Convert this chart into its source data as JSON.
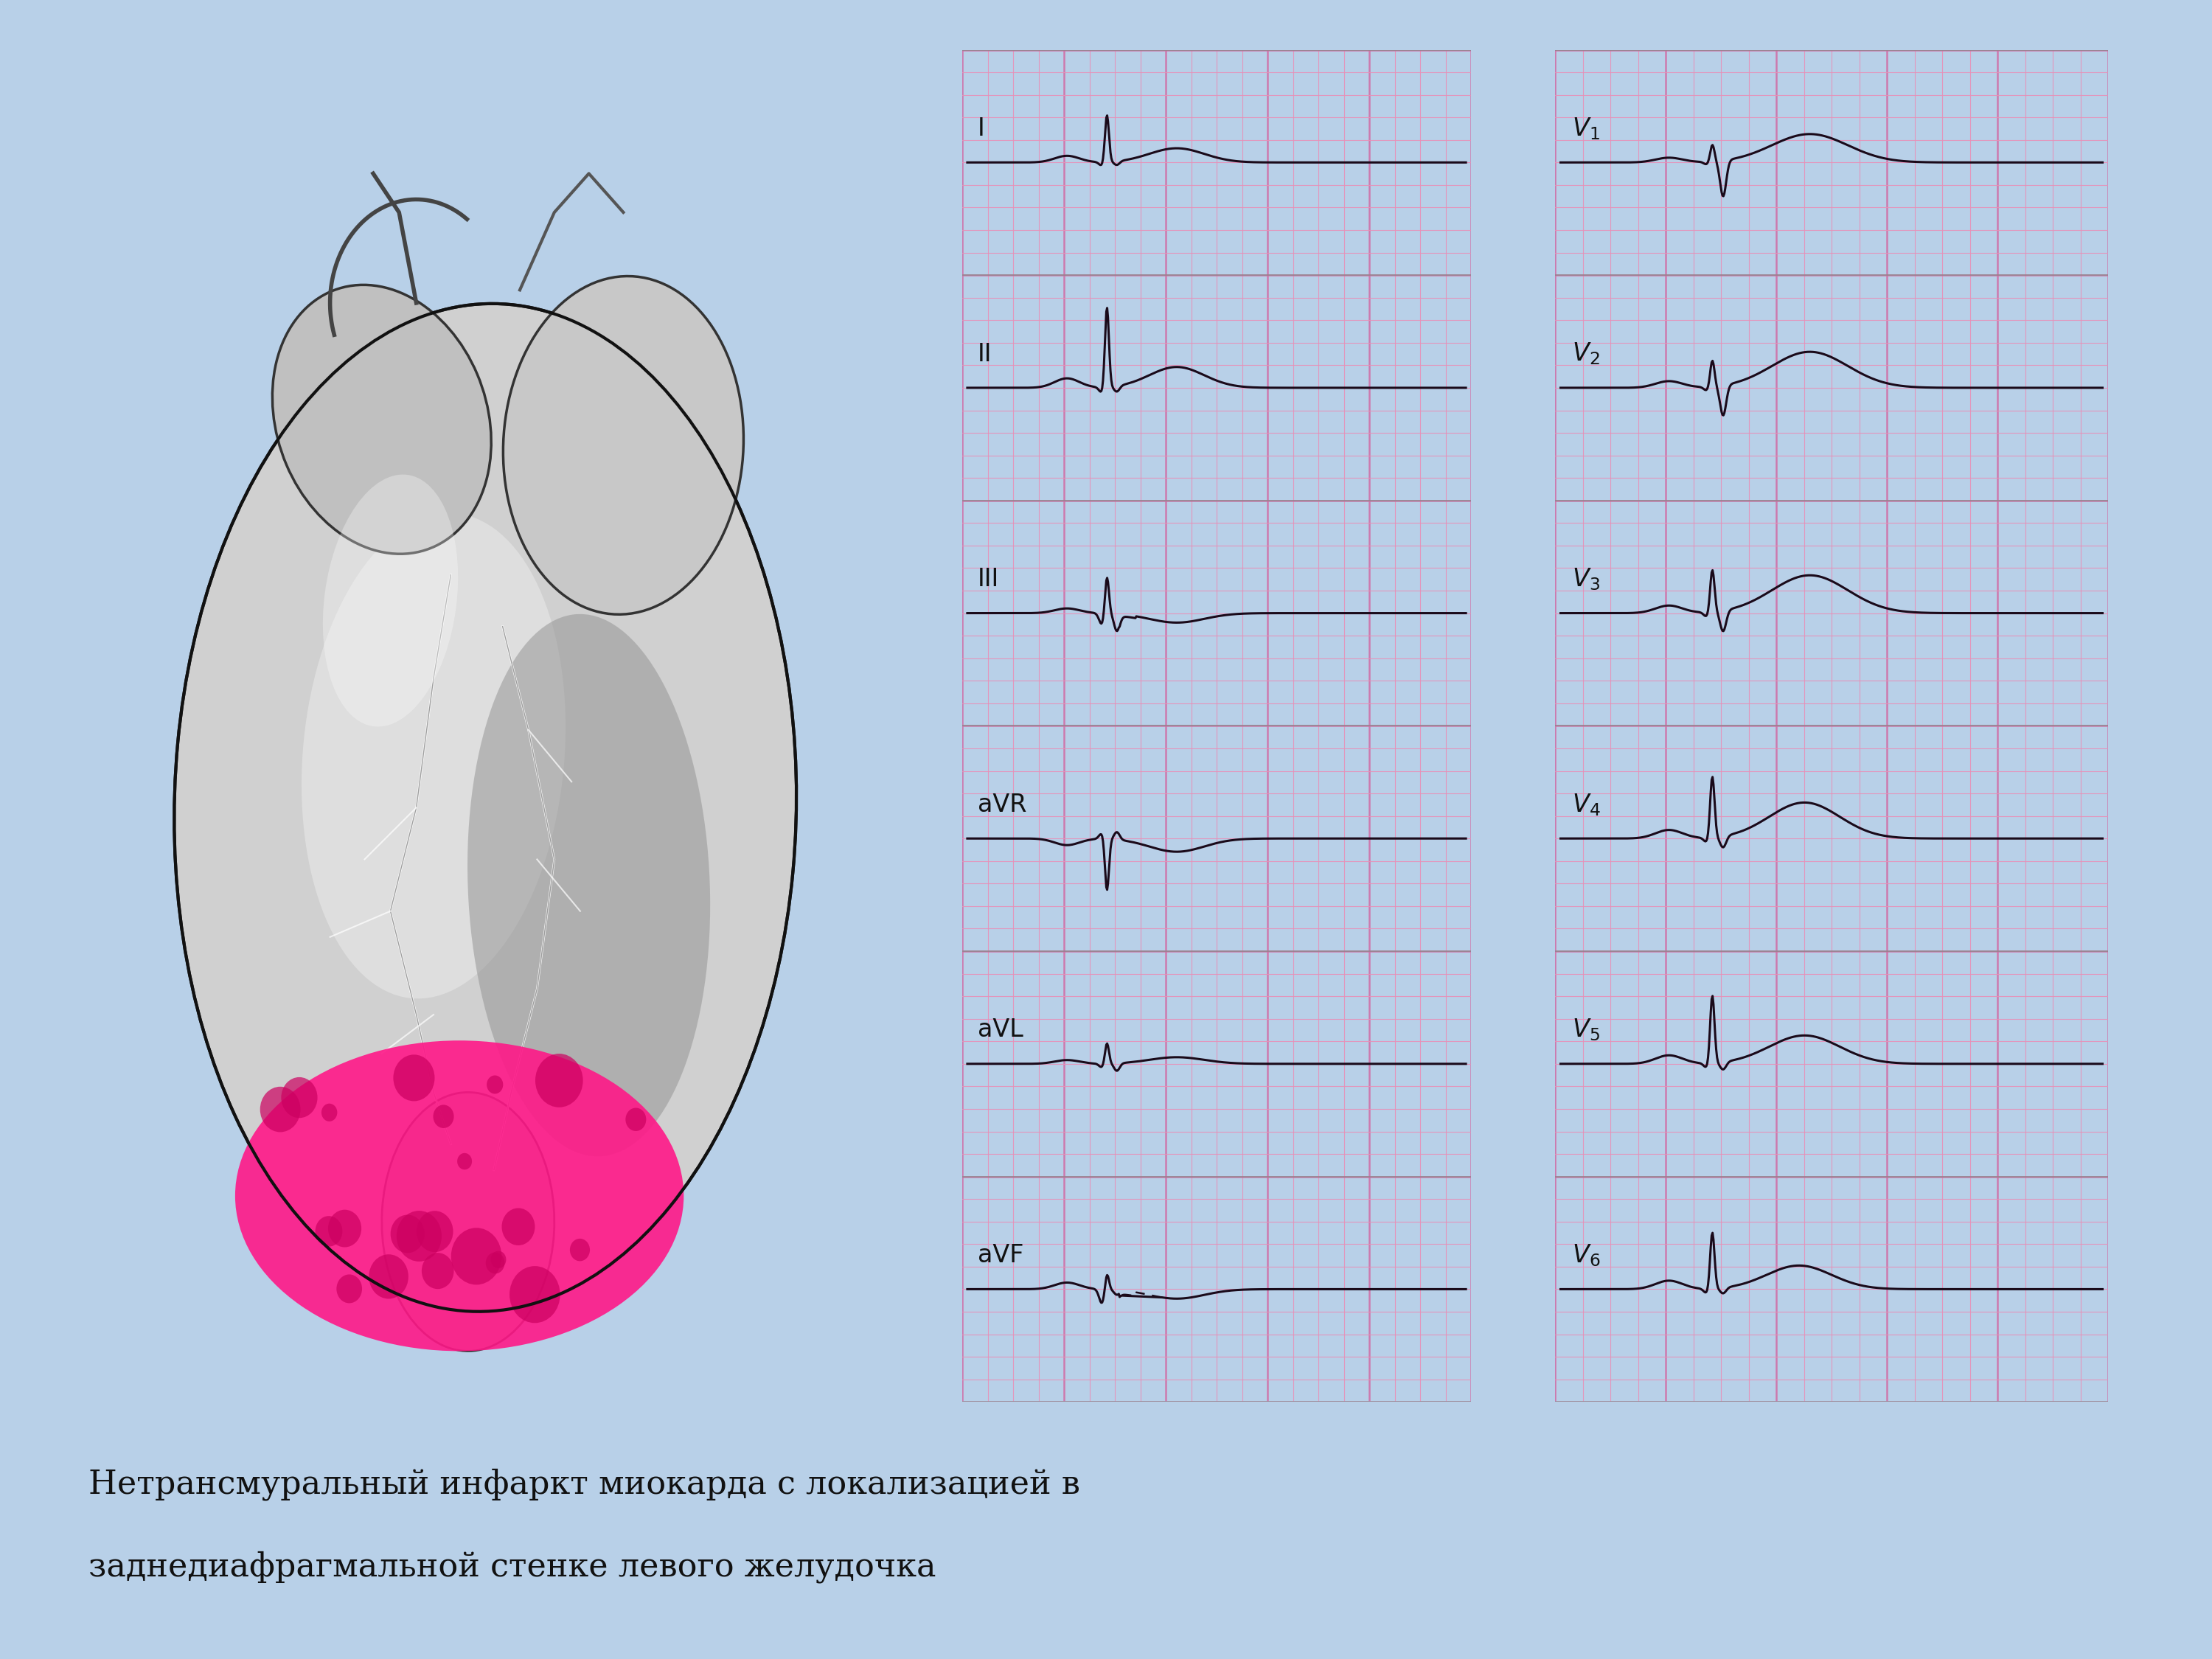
{
  "bg_color_top": "#b8d0e8",
  "bg_color_bottom": "#c8ddf0",
  "slide_bg": "#ffffff",
  "ecg_bg_light": "#f8c8d8",
  "ecg_bg_dark": "#f0a0c0",
  "ecg_grid_fine": "#e890b8",
  "ecg_grid_bold": "#d070a8",
  "ecg_line_color": "#1a0a1a",
  "separator_color": "#888888",
  "caption_line1": "Нетрансмуральный инфаркт миокарда с локализацией в",
  "caption_line2": "заднедиафрагмальной стенке левого желудочка",
  "leads_left": [
    "I",
    "II",
    "III",
    "aVR",
    "aVL",
    "aVF"
  ],
  "leads_right": [
    "V1",
    "V2",
    "V3",
    "V4",
    "V5",
    "V6"
  ],
  "caption_fontsize": 32,
  "lead_fontsize": 24
}
